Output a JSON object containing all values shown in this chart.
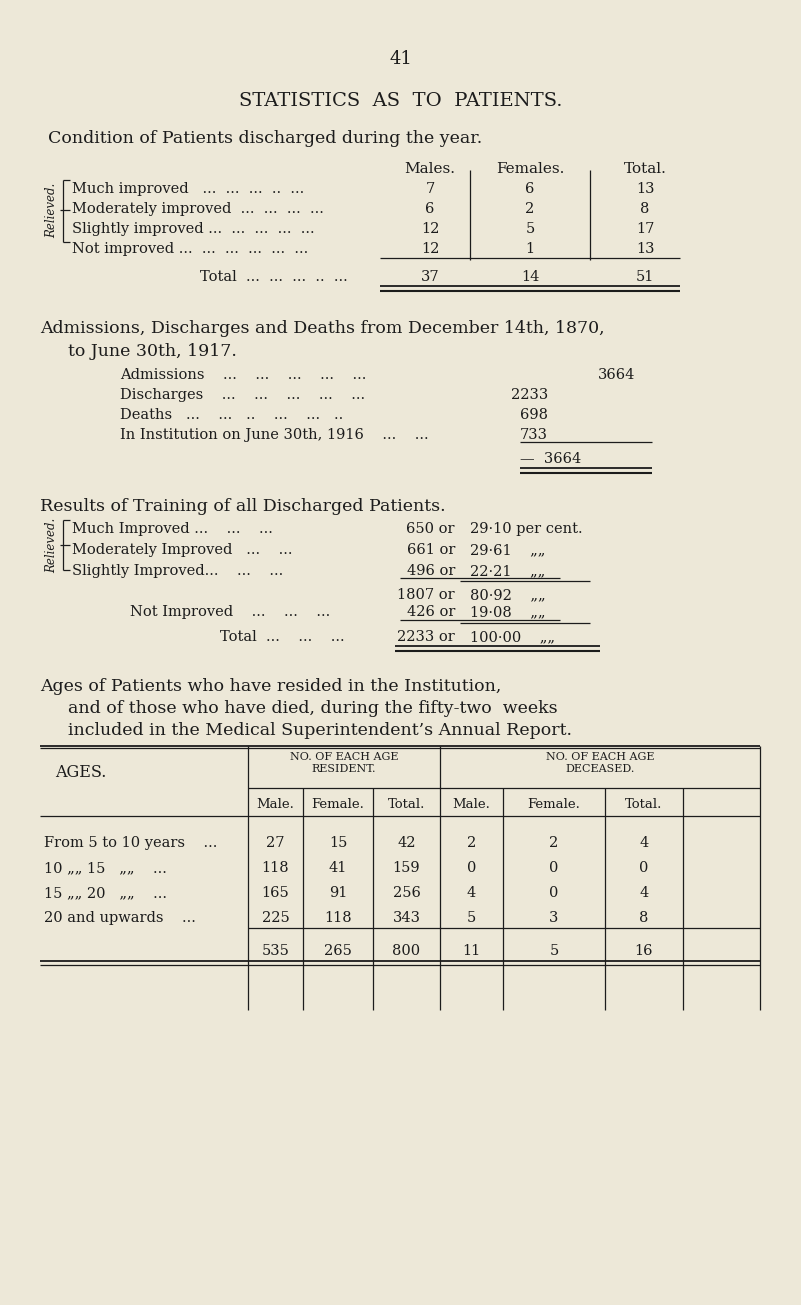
{
  "bg_color": "#ede8d8",
  "text_color": "#1c1c1c",
  "page_number": "41",
  "main_title": "STATISTICS  AS  TO  PATIENTS.",
  "s1_head": "Condition of Patients discharged during the year.",
  "s1_col_headers": [
    "Males.",
    "Females.",
    "Total."
  ],
  "s1_rows": [
    [
      "Much improved   ...  ...  ...  ..  ...",
      "7",
      "6",
      "13"
    ],
    [
      "Moderately improved  ...  ...  ...  ...",
      "6",
      "2",
      "8"
    ],
    [
      "Slightly improved ...  ...  ...  ...  ...",
      "12",
      "5",
      "17"
    ],
    [
      "Not improved ...  ...  ...  ...  ...  ...",
      "12",
      "1",
      "13"
    ]
  ],
  "s1_total": [
    "Total  ...  ...  ...  ..  ...",
    "37",
    "14",
    "51"
  ],
  "s2_head1": "Admissions, Discharges and Deaths from December 14th, 1870,",
  "s2_head2": "to June 30th, 1917.",
  "s2_rows": [
    [
      "Admissions    ...    ...    ...    ...    ...",
      "",
      "3664"
    ],
    [
      "Discharges    ...    ...    ...    ...    ...",
      "2233",
      ""
    ],
    [
      "Deaths   ...    ...   ..    ...    ...   ..",
      "698",
      ""
    ],
    [
      "In Institution on June 30th, 1916    ...    ...",
      "733",
      ""
    ]
  ],
  "s2_dash_total": "3664",
  "s3_head": "Results of Training of all Discharged Patients.",
  "s3_rows": [
    [
      "Much Improved ...    ...    ...",
      "650 or",
      "29·10 per cent."
    ],
    [
      "Moderately Improved   ...    ...",
      "661 or",
      "29·61    „„"
    ],
    [
      "Slightly Improved...    ...    ...",
      "496 or",
      "22·21    „„"
    ]
  ],
  "s3_sub": [
    "1807 or",
    "80·92    „„"
  ],
  "s3_ni": [
    "Not Improved    ...    ...    ...",
    "426 or",
    "19·08    „„"
  ],
  "s3_tot": [
    "Total  ...    ...    ...",
    "2233 or",
    "100·00    „„"
  ],
  "s4_head1": "Ages of Patients who have resided in the Institution,",
  "s4_head2": "and of those who have died, during the fifty-two  weeks",
  "s4_head3": "included in the Medical Superintendent’s Annual Report.",
  "s4_ages_label": "AGES.",
  "s4_res_header": "NO. OF EACH AGE\nRESIDENT.",
  "s4_dec_header": "NO. OF EACH AGE\nDECEASED.",
  "s4_subcols": [
    "Male.",
    "Female.",
    "Total.",
    "Male.",
    "Female.",
    "Total."
  ],
  "s4_rows": [
    [
      "From 5 to 10 years    ...",
      "27",
      "15",
      "42",
      "2",
      "2",
      "4"
    ],
    [
      "10 „„ 15   „„    ...",
      "118",
      "41",
      "159",
      "0",
      "0",
      "0"
    ],
    [
      "15 „„ 20   „„    ...",
      "165",
      "91",
      "256",
      "4",
      "0",
      "4"
    ],
    [
      "20 and upwards    ...",
      "225",
      "118",
      "343",
      "5",
      "3",
      "8"
    ]
  ],
  "s4_totals": [
    "535",
    "265",
    "800",
    "11",
    "5",
    "16"
  ]
}
